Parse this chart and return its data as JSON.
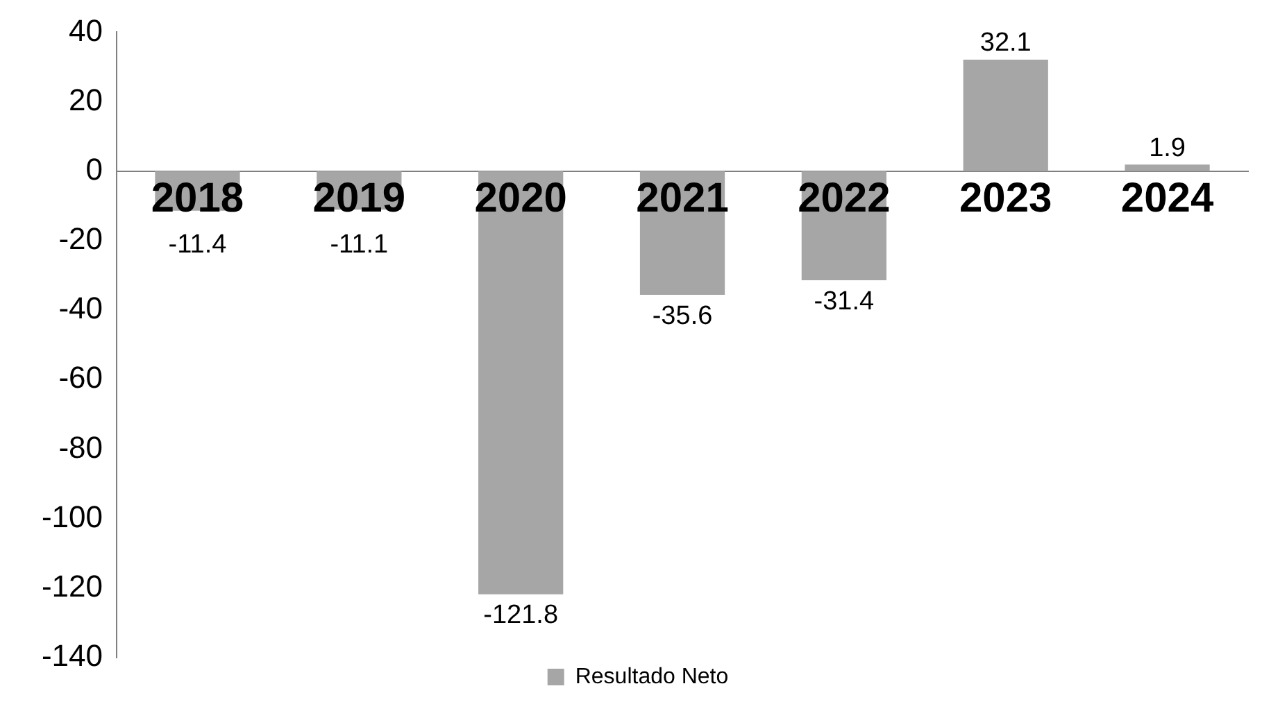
{
  "chart_data": {
    "type": "bar",
    "categories": [
      "2018",
      "2019",
      "2020",
      "2021",
      "2022",
      "2023",
      "2024"
    ],
    "series": [
      {
        "name": "Resultado Neto",
        "color": "#a6a6a6",
        "values": [
          -11.4,
          -11.1,
          -121.8,
          -35.6,
          -31.4,
          32.1,
          1.9
        ]
      }
    ],
    "ylim": [
      -140,
      40
    ],
    "yticks": [
      -140,
      -120,
      -100,
      -80,
      -60,
      -40,
      -20,
      0,
      20,
      40
    ],
    "grid": false,
    "legend": "bottom",
    "data_labels": true
  }
}
